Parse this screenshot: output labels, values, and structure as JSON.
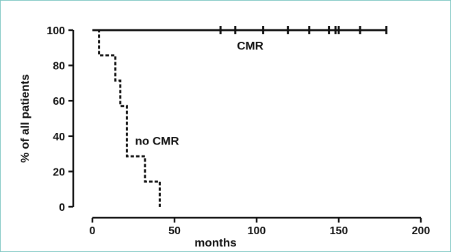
{
  "chart_data": {
    "type": "line",
    "subtype": "kaplan-meier-step",
    "xlabel": "months",
    "ylabel": "% of all patients",
    "xlim": [
      0,
      200
    ],
    "ylim": [
      0,
      100
    ],
    "x_ticks": [
      0,
      50,
      100,
      150,
      200
    ],
    "y_ticks": [
      0,
      20,
      40,
      60,
      80,
      100
    ],
    "x_tick_labels": [
      "0",
      "50",
      "100",
      "150",
      "200"
    ],
    "y_tick_labels": [
      "0",
      "20",
      "40",
      "60",
      "80",
      "100"
    ],
    "grid": false,
    "series": [
      {
        "name": "CMR",
        "style": "solid",
        "color": "#111111",
        "step_points": [
          [
            0,
            100
          ],
          [
            179,
            100
          ]
        ],
        "censor_marks": [
          78,
          87,
          104,
          119,
          132,
          144,
          148,
          150,
          163,
          179
        ]
      },
      {
        "name": "no CMR",
        "style": "dashed",
        "color": "#111111",
        "step_points": [
          [
            0,
            100
          ],
          [
            4,
            100
          ],
          [
            4,
            85.7
          ],
          [
            14,
            85.7
          ],
          [
            14,
            71.4
          ],
          [
            17,
            71.4
          ],
          [
            17,
            57.1
          ],
          [
            21,
            57.1
          ],
          [
            21,
            28.6
          ],
          [
            32,
            28.6
          ],
          [
            32,
            14.3
          ],
          [
            41,
            14.3
          ],
          [
            41,
            0
          ]
        ],
        "censor_marks": []
      }
    ],
    "annotations": [
      {
        "text": "CMR",
        "x": 88,
        "y": 89
      },
      {
        "text": "no CMR",
        "x": 26,
        "y": 35
      }
    ]
  }
}
